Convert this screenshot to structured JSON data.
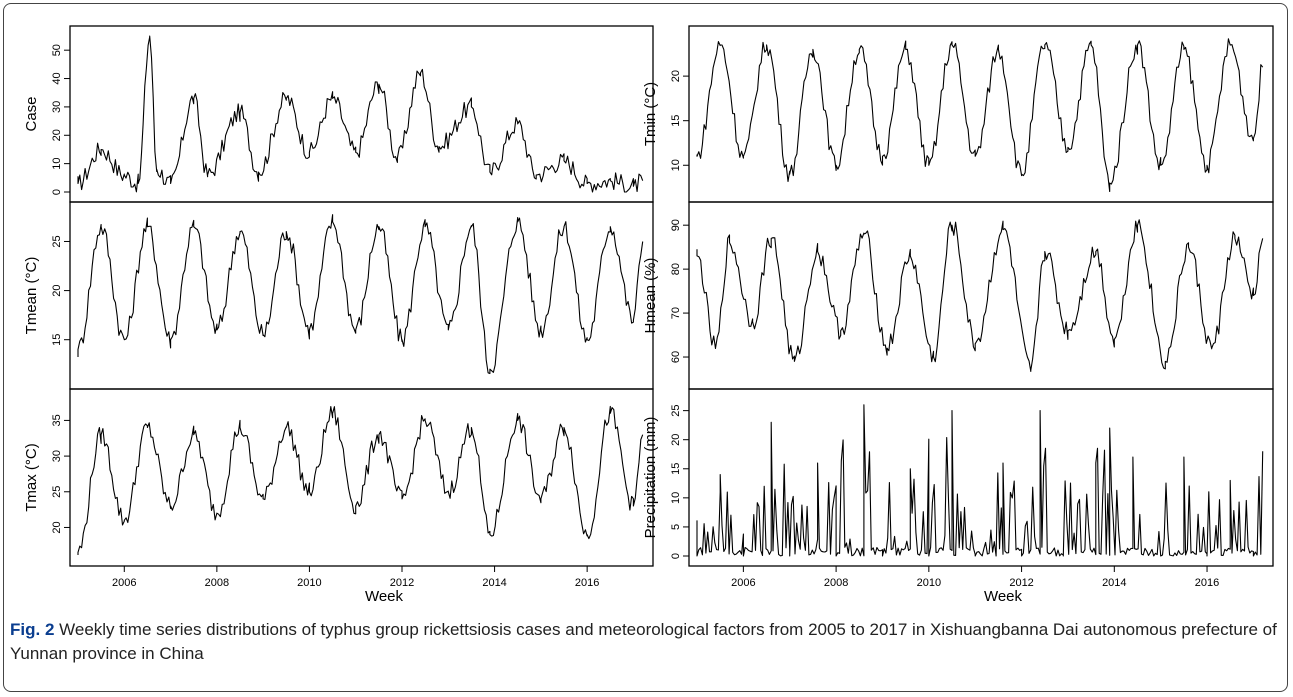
{
  "caption": {
    "label": "Fig. 2",
    "text": " Weekly time series distributions of typhus group rickettsiosis cases and meteorological factors from 2005 to 2017 in Xishuangbanna Dai autonomous prefecture of Yunnan province in China"
  },
  "chart_data": [
    {
      "type": "line",
      "column": "left",
      "ylabel": "Case",
      "xlabel": "Week",
      "xlim": [
        2005.0,
        2017.25
      ],
      "ylim": [
        0,
        55
      ],
      "yticks": [
        0,
        10,
        20,
        30,
        40,
        50
      ],
      "xticks": [
        2006,
        2008,
        2010,
        2012,
        2014,
        2016
      ],
      "x": [
        2005.0,
        2005.5,
        2006.0,
        2006.3,
        2006.55,
        2006.7,
        2007.0,
        2007.5,
        2007.8,
        2008.5,
        2008.9,
        2009.5,
        2010.0,
        2010.5,
        2011.0,
        2011.5,
        2011.9,
        2012.4,
        2012.8,
        2013.5,
        2013.9,
        2014.5,
        2014.9,
        2015.5,
        2016.0,
        2016.5,
        2017.0,
        2017.2
      ],
      "values": [
        3,
        15,
        6,
        3,
        55,
        8,
        3,
        33,
        6,
        28,
        7,
        33,
        14,
        33,
        14,
        38,
        12,
        42,
        16,
        30,
        7,
        24,
        6,
        11,
        3,
        4,
        2,
        4
      ]
    },
    {
      "type": "line",
      "column": "left",
      "ylabel": "Tmean (°C)",
      "xlabel": "Week",
      "xlim": [
        2005.0,
        2017.25
      ],
      "ylim": [
        11,
        28
      ],
      "yticks": [
        15,
        20,
        25
      ],
      "xticks": [
        2006,
        2008,
        2010,
        2012,
        2014,
        2016
      ],
      "x": [
        2005.0,
        2005.5,
        2006.0,
        2006.5,
        2007.0,
        2007.5,
        2008.0,
        2008.5,
        2009.0,
        2009.5,
        2010.0,
        2010.5,
        2011.0,
        2011.5,
        2012.0,
        2012.5,
        2013.0,
        2013.5,
        2013.9,
        2014.5,
        2015.0,
        2015.5,
        2016.0,
        2016.5,
        2017.0,
        2017.2
      ],
      "values": [
        14,
        26.5,
        15,
        26.5,
        15,
        26.5,
        16,
        26,
        15.5,
        26,
        16,
        27,
        16,
        26.5,
        15,
        26.5,
        16,
        26.5,
        12,
        27,
        16,
        26.5,
        15,
        26.5,
        17,
        25
      ]
    },
    {
      "type": "line",
      "column": "left",
      "ylabel": "Tmax (°C)",
      "xlabel": "Week",
      "xlim": [
        2005.0,
        2017.25
      ],
      "ylim": [
        16,
        38
      ],
      "yticks": [
        20,
        25,
        30,
        35
      ],
      "xticks": [
        2006,
        2008,
        2010,
        2012,
        2014,
        2016
      ],
      "x": [
        2005.0,
        2005.5,
        2006.0,
        2006.5,
        2007.0,
        2007.5,
        2008.0,
        2008.5,
        2009.0,
        2009.5,
        2010.0,
        2010.5,
        2011.0,
        2011.5,
        2012.0,
        2012.5,
        2013.0,
        2013.5,
        2013.9,
        2014.5,
        2015.0,
        2015.5,
        2016.0,
        2016.5,
        2017.0,
        2017.2
      ],
      "values": [
        16.5,
        33,
        21,
        34,
        23,
        33,
        22,
        34,
        24,
        34,
        25,
        36,
        23,
        33,
        24,
        35,
        25,
        34,
        19,
        35,
        24,
        34,
        19,
        36,
        23,
        33
      ]
    },
    {
      "type": "line",
      "column": "right",
      "ylabel": "Tmin (°C)",
      "xlabel": "Week",
      "xlim": [
        2005.0,
        2017.25
      ],
      "ylim": [
        7,
        24.5
      ],
      "yticks": [
        10,
        15,
        20
      ],
      "xticks": [
        2006,
        2008,
        2010,
        2012,
        2014,
        2016
      ],
      "x": [
        2005.0,
        2005.5,
        2006.0,
        2006.5,
        2007.0,
        2007.5,
        2008.0,
        2008.5,
        2009.0,
        2009.5,
        2010.0,
        2010.5,
        2011.0,
        2011.5,
        2012.0,
        2012.5,
        2013.0,
        2013.5,
        2013.9,
        2014.5,
        2015.0,
        2015.5,
        2016.0,
        2016.5,
        2017.0,
        2017.2
      ],
      "values": [
        11,
        23.5,
        11,
        23.5,
        9,
        23,
        10,
        23,
        11,
        23,
        10,
        23.5,
        11,
        23,
        9,
        23.5,
        12,
        23.5,
        8,
        23.5,
        10,
        23,
        10,
        23.5,
        13,
        21
      ]
    },
    {
      "type": "line",
      "column": "right",
      "ylabel": "Hmean (%)",
      "xlabel": "Week",
      "xlim": [
        2005.0,
        2017.25
      ],
      "ylim": [
        55,
        93
      ],
      "yticks": [
        60,
        70,
        80,
        90
      ],
      "xticks": [
        2006,
        2008,
        2010,
        2012,
        2014,
        2016
      ],
      "x": [
        2005.0,
        2005.4,
        2005.7,
        2006.2,
        2006.6,
        2007.1,
        2007.6,
        2008.1,
        2008.6,
        2009.1,
        2009.6,
        2010.1,
        2010.5,
        2011.0,
        2011.6,
        2012.2,
        2012.5,
        2013.0,
        2013.6,
        2014.0,
        2014.5,
        2015.1,
        2015.6,
        2016.1,
        2016.6,
        2017.0,
        2017.2
      ],
      "values": [
        83,
        62,
        86,
        68,
        87,
        59,
        84,
        66,
        88,
        62,
        83,
        60,
        90,
        63,
        89,
        57,
        84,
        66,
        84,
        64,
        90,
        59,
        85,
        62,
        87,
        74,
        87
      ]
    },
    {
      "type": "line",
      "column": "right",
      "ylabel": "Precipitation (mm)",
      "xlabel": "Week",
      "xlim": [
        2005.0,
        2017.25
      ],
      "ylim": [
        0,
        27
      ],
      "yticks": [
        0,
        5,
        10,
        15,
        20,
        25
      ],
      "xticks": [
        2006,
        2008,
        2010,
        2012,
        2014,
        2016
      ],
      "x": [
        2005.0,
        2005.5,
        2006.0,
        2006.6,
        2007.0,
        2007.6,
        2008.0,
        2008.6,
        2009.0,
        2009.6,
        2010.0,
        2010.5,
        2011.0,
        2011.6,
        2012.0,
        2012.4,
        2012.9,
        2013.6,
        2013.9,
        2014.4,
        2015.0,
        2015.5,
        2016.0,
        2016.5,
        2017.0,
        2017.2
      ],
      "values": [
        0,
        14,
        0,
        23,
        0,
        16,
        0,
        26,
        0,
        15,
        0,
        25,
        0,
        16,
        0,
        25,
        0,
        16,
        22,
        17,
        0,
        17,
        0,
        13,
        0,
        18
      ]
    }
  ]
}
